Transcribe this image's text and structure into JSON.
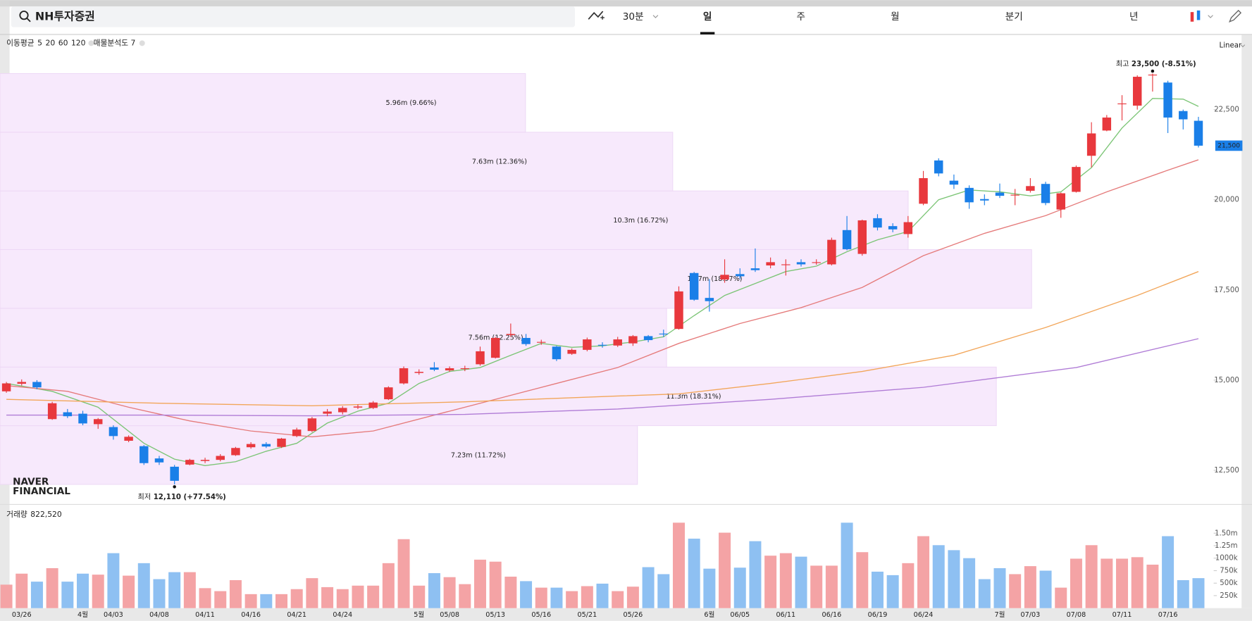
{
  "header": {
    "search": "NH투자증권",
    "tabs": [
      "30분",
      "일",
      "주",
      "월",
      "분기",
      "년"
    ],
    "selected_tab": 1
  },
  "chart_data": {
    "type": "candlestick",
    "ma_label": "이동평균",
    "scale_label": "Linear",
    "volume_title": "거래량",
    "volume_value": "822,520",
    "watermark": [
      "NAVER",
      "FINANCIAL"
    ],
    "categories": [
      null,
      "03/26",
      null,
      null,
      null,
      "4월",
      null,
      "04/03",
      null,
      null,
      "04/08",
      null,
      null,
      "04/11",
      null,
      null,
      "04/16",
      null,
      null,
      "04/21",
      null,
      null,
      "04/24",
      null,
      null,
      null,
      null,
      "5월",
      null,
      "05/08",
      null,
      null,
      "05/13",
      null,
      null,
      "05/16",
      null,
      null,
      "05/21",
      null,
      null,
      "05/26",
      null,
      null,
      null,
      null,
      "6월",
      null,
      "06/05",
      null,
      null,
      "06/11",
      null,
      null,
      "06/16",
      null,
      null,
      "06/19",
      null,
      null,
      "06/24",
      null,
      null,
      null,
      null,
      "7월",
      null,
      "07/03",
      null,
      null,
      "07/08",
      null,
      null,
      "07/11",
      null,
      null,
      "07/16",
      null,
      null
    ],
    "open": [
      14690,
      14900,
      14950,
      13920,
      14110,
      14070,
      13780,
      13700,
      13320,
      13170,
      12830,
      12600,
      12660,
      12760,
      12790,
      12920,
      13140,
      13230,
      13150,
      13450,
      13590,
      14070,
      14110,
      14240,
      14230,
      14470,
      14910,
      15200,
      15350,
      15270,
      15310,
      15440,
      15620,
      16250,
      16170,
      16040,
      15930,
      15730,
      15840,
      15980,
      15960,
      16020,
      16220,
      16290,
      16420,
      17970,
      17280,
      17790,
      17940,
      18100,
      18180,
      18190,
      18270,
      18250,
      18210,
      19160,
      18500,
      19490,
      19270,
      19050,
      19890,
      21090,
      20530,
      20330,
      20020,
      20200,
      20130,
      20250,
      20440,
      19730,
      20220,
      21220,
      21920,
      22650,
      22610,
      23450,
      23250,
      22460,
      22190
    ],
    "high": [
      14950,
      15020,
      15000,
      14400,
      14200,
      14150,
      13950,
      13750,
      13470,
      13200,
      12900,
      12650,
      12820,
      12850,
      12950,
      13150,
      13280,
      13280,
      13400,
      13680,
      13980,
      14200,
      14280,
      14330,
      14420,
      14830,
      15380,
      15300,
      15500,
      15380,
      15400,
      15930,
      16200,
      16570,
      16280,
      16120,
      15950,
      15880,
      16180,
      16050,
      16200,
      16250,
      16250,
      16400,
      17600,
      18000,
      17800,
      18350,
      18100,
      18650,
      18400,
      18350,
      18350,
      18350,
      18950,
      19550,
      19450,
      19600,
      19350,
      19550,
      20800,
      21150,
      20700,
      20400,
      20150,
      20450,
      20300,
      20600,
      20500,
      20200,
      20950,
      22150,
      22350,
      22900,
      23450,
      23500,
      23300,
      22500,
      22300
    ],
    "low": [
      14650,
      14850,
      14750,
      13900,
      13950,
      13750,
      13650,
      13350,
      13280,
      12650,
      12650,
      12110,
      12640,
      12700,
      12750,
      12900,
      13100,
      13120,
      13120,
      13420,
      13560,
      14000,
      14050,
      14200,
      14200,
      14450,
      14880,
      15150,
      15250,
      15230,
      15250,
      15400,
      15600,
      16200,
      15950,
      15980,
      15530,
      15700,
      15800,
      15900,
      15920,
      15950,
      16050,
      16200,
      16400,
      17200,
      16900,
      17700,
      17800,
      18000,
      18100,
      17900,
      18150,
      18200,
      18180,
      18600,
      18450,
      19150,
      19100,
      18950,
      19850,
      20650,
      20300,
      19750,
      19850,
      20050,
      19850,
      20200,
      19850,
      19500,
      20200,
      20900,
      21900,
      22200,
      22500,
      23000,
      21850,
      21950,
      21450
    ],
    "close": [
      14910,
      14950,
      14800,
      14360,
      14000,
      13800,
      13920,
      13450,
      13430,
      12700,
      12720,
      12210,
      12790,
      12790,
      12900,
      13120,
      13230,
      13160,
      13380,
      13630,
      13940,
      14130,
      14230,
      14270,
      14380,
      14800,
      15330,
      15230,
      15290,
      15330,
      15330,
      15800,
      16170,
      16280,
      16000,
      16060,
      15580,
      15840,
      16130,
      15960,
      16130,
      16220,
      16110,
      16270,
      17460,
      17230,
      17190,
      17920,
      17880,
      18050,
      18270,
      18210,
      18210,
      18270,
      18890,
      18630,
      19430,
      19230,
      19180,
      19380,
      20600,
      20730,
      20420,
      19930,
      19980,
      20110,
      20140,
      20380,
      19910,
      20180,
      20910,
      21840,
      22280,
      22670,
      23410,
      23470,
      22280,
      22230,
      21500
    ],
    "up_color": "#e8383d",
    "down_color": "#1a7fe8",
    "up_volume_color": "#f4a3a5",
    "down_volume_color": "#8ec0f2",
    "volume": [
      470000,
      690000,
      530000,
      800000,
      530000,
      690000,
      670000,
      1100000,
      650000,
      900000,
      580000,
      720000,
      720000,
      400000,
      340000,
      560000,
      280000,
      280000,
      280000,
      380000,
      600000,
      420000,
      380000,
      450000,
      450000,
      900000,
      1380000,
      450000,
      700000,
      620000,
      480000,
      970000,
      930000,
      630000,
      540000,
      410000,
      410000,
      340000,
      440000,
      490000,
      340000,
      430000,
      820000,
      680000,
      1710000,
      1390000,
      790000,
      1510000,
      810000,
      1340000,
      1050000,
      1100000,
      1030000,
      850000,
      850000,
      1710000,
      1120000,
      730000,
      660000,
      900000,
      1440000,
      1260000,
      1160000,
      1000000,
      580000,
      800000,
      680000,
      840000,
      750000,
      410000,
      990000,
      1260000,
      990000,
      990000,
      1020000,
      870000,
      1440000,
      560000,
      600000
    ],
    "series": [
      {
        "name": "5",
        "color": "#7cc576",
        "x": [
          0,
          3,
          6,
          9,
          11,
          13,
          15,
          17,
          19,
          21,
          23,
          25,
          27,
          29,
          31,
          33,
          35,
          37,
          39,
          41,
          43,
          45,
          47,
          49,
          51,
          53,
          55,
          57,
          59,
          61,
          63,
          65,
          67,
          69,
          71,
          73,
          75,
          77,
          78
        ],
        "values": [
          14910,
          14690,
          14250,
          13250,
          12810,
          12630,
          12740,
          13030,
          13250,
          13810,
          14140,
          14360,
          14910,
          15240,
          15350,
          15690,
          16020,
          15910,
          15950,
          16060,
          16200,
          16790,
          17350,
          17680,
          18010,
          18160,
          18560,
          18890,
          19120,
          20000,
          20270,
          20220,
          20110,
          20220,
          20890,
          21990,
          22810,
          22790,
          22590
        ]
      },
      {
        "name": "20",
        "color": "#e57b7b",
        "x": [
          0,
          4,
          8,
          12,
          16,
          20,
          24,
          28,
          32,
          36,
          40,
          44,
          48,
          52,
          56,
          60,
          64,
          68,
          72,
          76,
          78
        ],
        "values": [
          14850,
          14690,
          14250,
          13870,
          13590,
          13430,
          13590,
          14030,
          14470,
          14910,
          15350,
          16020,
          16570,
          17010,
          17570,
          18450,
          19070,
          19560,
          20220,
          20820,
          21110
        ]
      },
      {
        "name": "60",
        "color": "#f2a65a",
        "x": [
          0,
          10,
          20,
          30,
          40,
          44,
          50,
          56,
          62,
          68,
          74,
          78
        ],
        "values": [
          14470,
          14360,
          14290,
          14400,
          14560,
          14620,
          14910,
          15240,
          15690,
          16460,
          17350,
          18010
        ]
      },
      {
        "name": "120",
        "color": "#b07cd6",
        "x": [
          0,
          10,
          20,
          30,
          40,
          50,
          60,
          70,
          78
        ],
        "values": [
          14030,
          14030,
          14010,
          14050,
          14200,
          14470,
          14800,
          15350,
          16150
        ]
      }
    ],
    "profile": {
      "title": "매물분석도 7",
      "color": "#f7e9fc",
      "bins": [
        12110,
        13737,
        15364,
        16991,
        18619,
        20246,
        21873,
        23500
      ],
      "values": [
        7.23,
        11.3,
        7.56,
        11.7,
        10.3,
        7.63,
        5.96
      ],
      "percents": [
        11.72,
        18.31,
        12.25,
        18.97,
        16.72,
        12.36,
        9.66
      ],
      "value_labels": [
        "7.23m (11.72%)",
        "11.3m (18.31%)",
        "7.56m (12.25%)",
        "11.7m (18.97%)",
        "10.3m (16.72%)",
        "7.63m (12.36%)",
        "5.96m (9.66%)"
      ]
    },
    "annotations": [
      {
        "prefix": "최고",
        "text": "23,500 (-8.51%)",
        "index": 75,
        "at": "high"
      },
      {
        "prefix": "최저",
        "text": "12,110 (+77.54%)",
        "index": 11,
        "at": "low"
      }
    ],
    "last_price": {
      "value": 21500,
      "label": "21,500"
    },
    "ylim": [
      11600,
      24540
    ],
    "yticks": [
      {
        "value": 12500,
        "label": "12,500"
      },
      {
        "value": 15000,
        "label": "15,000"
      },
      {
        "value": 17500,
        "label": "17,500"
      },
      {
        "value": 20000,
        "label": "20,000"
      },
      {
        "value": 22500,
        "label": "22,500"
      }
    ],
    "volume_ylim": [
      0,
      2060000
    ],
    "volume_ticks": [
      {
        "value": 250000,
        "label": "250k"
      },
      {
        "value": 500000,
        "label": "500k"
      },
      {
        "value": 750000,
        "label": "750k"
      },
      {
        "value": 1000000,
        "label": "1000k"
      },
      {
        "value": 1250000,
        "label": "1.25m"
      },
      {
        "value": 1500000,
        "label": "1.50m"
      }
    ]
  }
}
